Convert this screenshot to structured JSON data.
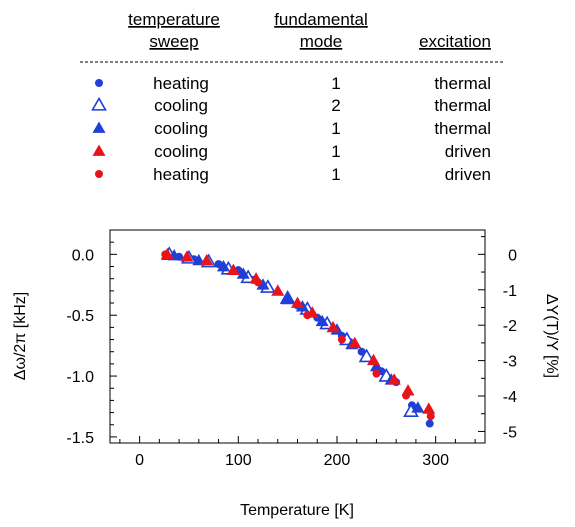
{
  "legend_table": {
    "headers": {
      "sweep": [
        "temperature",
        "sweep"
      ],
      "mode": [
        "fundamental",
        "mode"
      ],
      "excitation": [
        "excitation"
      ]
    },
    "rows": [
      {
        "marker": "circle-filled",
        "color": "#1f3fd6",
        "sweep": "heating",
        "mode": "1",
        "excitation": "thermal"
      },
      {
        "marker": "triangle-open",
        "color": "#1f3fd6",
        "sweep": "cooling",
        "mode": "2",
        "excitation": "thermal"
      },
      {
        "marker": "triangle-filled",
        "color": "#1f3fd6",
        "sweep": "cooling",
        "mode": "1",
        "excitation": "thermal"
      },
      {
        "marker": "triangle-filled",
        "color": "#e8141c",
        "sweep": "cooling",
        "mode": "1",
        "excitation": "driven"
      },
      {
        "marker": "circle-filled",
        "color": "#e8141c",
        "sweep": "heating",
        "mode": "1",
        "excitation": "driven"
      }
    ]
  },
  "chart_data": {
    "type": "scatter",
    "xlabel": "Temperature [K]",
    "ylabel_left": "Δω/2π [kHz]",
    "ylabel_right": "ΔY(T)/Y [%]",
    "xlim": [
      -30,
      350
    ],
    "ylim": [
      -1.55,
      0.2
    ],
    "xticks": [
      0,
      100,
      200,
      300
    ],
    "yticks_left": [
      0.0,
      -0.5,
      -1.0,
      -1.5
    ],
    "yticks_left_labels": [
      "0.0",
      "-0.5",
      "-1.0",
      "-1.5"
    ],
    "yticks_right": [
      0,
      -1,
      -2,
      -3,
      -4,
      -5
    ],
    "yticks_right_labels": [
      "0",
      "-1",
      "-2",
      "-3",
      "-4",
      "-5"
    ],
    "right_axis_scale": "0 % at 0.0 kHz, -5 % at -1.455 kHz",
    "series": [
      {
        "marker": "circle-filled",
        "color": "#1f3fd6",
        "x": [
          40,
          55,
          80,
          100,
          115,
          130,
          160,
          180,
          205,
          225,
          245,
          260,
          276,
          294
        ],
        "y": [
          -0.02,
          -0.04,
          -0.08,
          -0.13,
          -0.21,
          -0.28,
          -0.42,
          -0.52,
          -0.67,
          -0.8,
          -0.96,
          -1.05,
          -1.24,
          -1.39
        ]
      },
      {
        "marker": "triangle-open",
        "color": "#1f3fd6",
        "x": [
          30,
          50,
          70,
          90,
          110,
          130,
          150,
          170,
          190,
          210,
          230,
          250,
          275
        ],
        "y": [
          0.0,
          -0.03,
          -0.06,
          -0.12,
          -0.19,
          -0.27,
          -0.36,
          -0.45,
          -0.57,
          -0.7,
          -0.84,
          -1.0,
          -1.29
        ]
      },
      {
        "marker": "triangle-filled",
        "color": "#1f3fd6",
        "x": [
          35,
          60,
          85,
          105,
          125,
          150,
          165,
          185,
          200,
          215,
          240,
          255,
          282
        ],
        "y": [
          -0.01,
          -0.05,
          -0.1,
          -0.16,
          -0.25,
          -0.37,
          -0.43,
          -0.55,
          -0.62,
          -0.74,
          -0.92,
          -1.03,
          -1.26
        ]
      },
      {
        "marker": "triangle-filled",
        "color": "#e8141c",
        "x": [
          28,
          48,
          68,
          95,
          118,
          140,
          160,
          175,
          196,
          218,
          237,
          258,
          272,
          293
        ],
        "y": [
          0.0,
          -0.02,
          -0.05,
          -0.13,
          -0.2,
          -0.3,
          -0.4,
          -0.48,
          -0.6,
          -0.73,
          -0.87,
          -1.03,
          -1.12,
          -1.27
        ]
      },
      {
        "marker": "circle-filled",
        "color": "#e8141c",
        "x": [
          26,
          120,
          170,
          205,
          240,
          270,
          295
        ],
        "y": [
          0.0,
          -0.23,
          -0.5,
          -0.7,
          -0.98,
          -1.16,
          -1.33
        ]
      }
    ]
  }
}
